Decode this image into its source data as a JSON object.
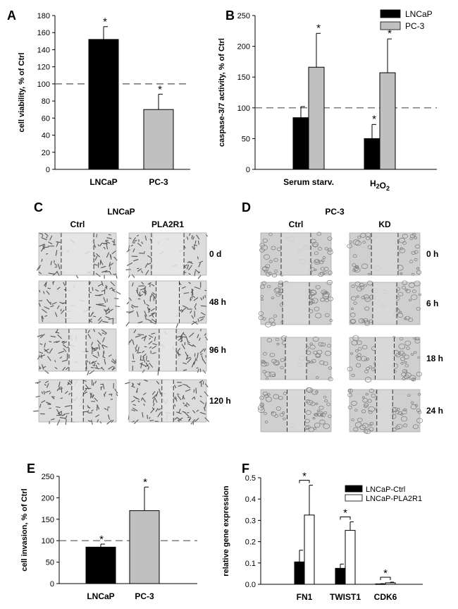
{
  "chart_data": [
    {
      "panel": "A",
      "type": "bar",
      "categories": [
        "LNCaP",
        "PC-3"
      ],
      "values": [
        152,
        70
      ],
      "errors": [
        15,
        18
      ],
      "significance": [
        "*",
        "*"
      ],
      "colors": [
        "#000000",
        "#c0c0c0"
      ],
      "ylabel": "cell viability, % of Ctrl",
      "ylim": [
        0,
        180
      ],
      "yticks": [
        "0",
        "20",
        "40",
        "60",
        "80",
        "100",
        "120",
        "140",
        "160",
        "180"
      ],
      "reference_line": 100
    },
    {
      "panel": "B",
      "type": "bar",
      "categories": [
        "Serum starv.",
        "H2O2"
      ],
      "series": [
        {
          "name": "LNCaP",
          "color": "#000000",
          "values": [
            84,
            50
          ],
          "errors": [
            18,
            23
          ],
          "significance": [
            "",
            "*"
          ]
        },
        {
          "name": "PC-3",
          "color": "#c0c0c0",
          "values": [
            166,
            157
          ],
          "errors": [
            55,
            55
          ],
          "significance": [
            "*",
            "*"
          ]
        }
      ],
      "ylabel": "caspase-3/7 activity, % of Ctrl",
      "ylim": [
        0,
        250
      ],
      "yticks": [
        "0",
        "50",
        "100",
        "150",
        "200",
        "250"
      ],
      "reference_line": 100,
      "legend": "top-right"
    },
    {
      "panel": "E",
      "type": "bar",
      "categories": [
        "LNCaP",
        "PC-3"
      ],
      "values": [
        85,
        170
      ],
      "errors": [
        7,
        55
      ],
      "significance": [
        "*",
        "*"
      ],
      "colors": [
        "#000000",
        "#c0c0c0"
      ],
      "ylabel": "cell invasion, % of Ctrl",
      "ylim": [
        0,
        250
      ],
      "yticks": [
        "0",
        "50",
        "100",
        "150",
        "200",
        "250"
      ],
      "reference_line": 100
    },
    {
      "panel": "F",
      "type": "bar",
      "categories": [
        "FN1",
        "TWIST1",
        "CDK6"
      ],
      "series": [
        {
          "name": "LNCaP-Ctrl",
          "color": "#000000",
          "values": [
            0.105,
            0.075,
            0.002
          ],
          "errors": [
            0.055,
            0.02,
            0.001
          ]
        },
        {
          "name": "LNCaP-PLA2R1",
          "color": "#ffffff",
          "values": [
            0.325,
            0.253,
            0.007
          ],
          "errors": [
            0.14,
            0.04,
            0.003
          ]
        }
      ],
      "significance": [
        "*",
        "*",
        "*"
      ],
      "ylabel": "relative gene expression",
      "ylim": [
        0,
        0.5
      ],
      "yticks": [
        "0.0",
        "0.1",
        "0.2",
        "0.3",
        "0.4",
        "0.5"
      ],
      "legend": "top-right"
    }
  ],
  "scratch_panels": [
    {
      "panel": "C",
      "title": "LNCaP",
      "columns": [
        "Ctrl",
        "PLA2R1"
      ],
      "timepoints": [
        "0 d",
        "48 h",
        "96 h",
        "120 h"
      ],
      "gap_fraction_by_timepoint": [
        0.42,
        0.3,
        0.22,
        0.15
      ]
    },
    {
      "panel": "D",
      "title": "PC-3",
      "columns": [
        "Ctrl",
        "KD"
      ],
      "timepoints": [
        "0 h",
        "6 h",
        "18 h",
        "24 h"
      ],
      "gap_fraction_by_timepoint": [
        0.42,
        0.38,
        0.3,
        0.25
      ]
    }
  ],
  "colors": {
    "dark": "#000000",
    "light": "#c0c0c0",
    "cell_bg": "#d9d9d9",
    "cell_dot": "#6e6e6e"
  }
}
